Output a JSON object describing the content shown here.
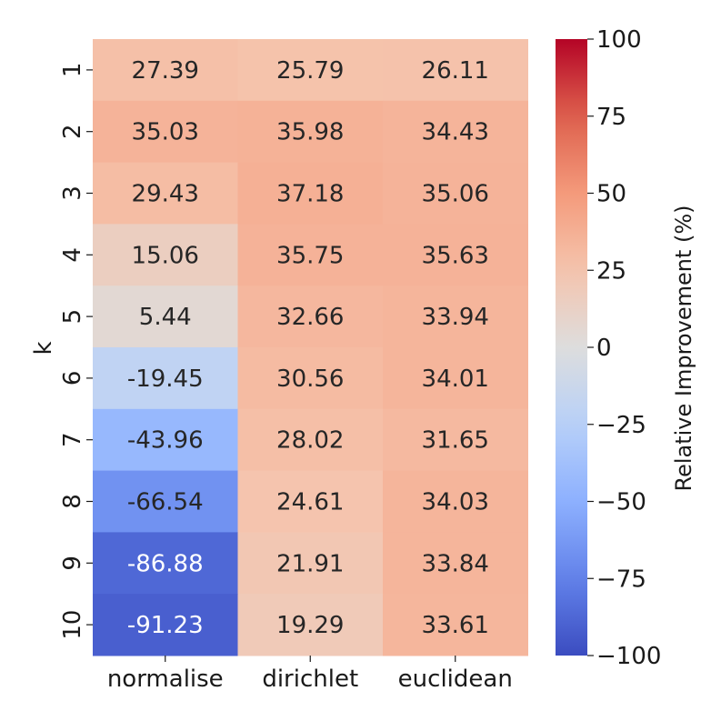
{
  "chart_data": {
    "type": "heatmap",
    "title": "",
    "xlabel": "",
    "ylabel": "k",
    "x_categories": [
      "normalise",
      "dirichlet",
      "euclidean"
    ],
    "y_categories": [
      "1",
      "2",
      "3",
      "4",
      "5",
      "6",
      "7",
      "8",
      "9",
      "10"
    ],
    "values": [
      [
        27.39,
        25.79,
        26.11
      ],
      [
        35.03,
        35.98,
        34.43
      ],
      [
        29.43,
        37.18,
        35.06
      ],
      [
        15.06,
        35.75,
        35.63
      ],
      [
        5.44,
        32.66,
        33.94
      ],
      [
        -19.45,
        30.56,
        34.01
      ],
      [
        -43.96,
        28.02,
        31.65
      ],
      [
        -66.54,
        24.61,
        34.03
      ],
      [
        -86.88,
        21.91,
        33.84
      ],
      [
        -91.23,
        19.29,
        33.61
      ]
    ],
    "cell_labels": [
      [
        "27.39",
        "25.79",
        "26.11"
      ],
      [
        "35.03",
        "35.98",
        "34.43"
      ],
      [
        "29.43",
        "37.18",
        "35.06"
      ],
      [
        "15.06",
        "35.75",
        "35.63"
      ],
      [
        "5.44",
        "32.66",
        "33.94"
      ],
      [
        "-19.45",
        "30.56",
        "34.01"
      ],
      [
        "-43.96",
        "28.02",
        "31.65"
      ],
      [
        "-66.54",
        "24.61",
        "34.03"
      ],
      [
        "-86.88",
        "21.91",
        "33.84"
      ],
      [
        "-91.23",
        "19.29",
        "33.61"
      ]
    ],
    "colormap": "coolwarm",
    "vmin": -100,
    "vmax": 100,
    "colorbar": {
      "label": "Relative Improvement (%)",
      "ticks": [
        100,
        75,
        50,
        25,
        0,
        -25,
        -50,
        -75,
        -100
      ],
      "tick_labels": [
        "100",
        "75",
        "50",
        "25",
        "0",
        "−25",
        "−50",
        "−75",
        "−100"
      ]
    }
  }
}
